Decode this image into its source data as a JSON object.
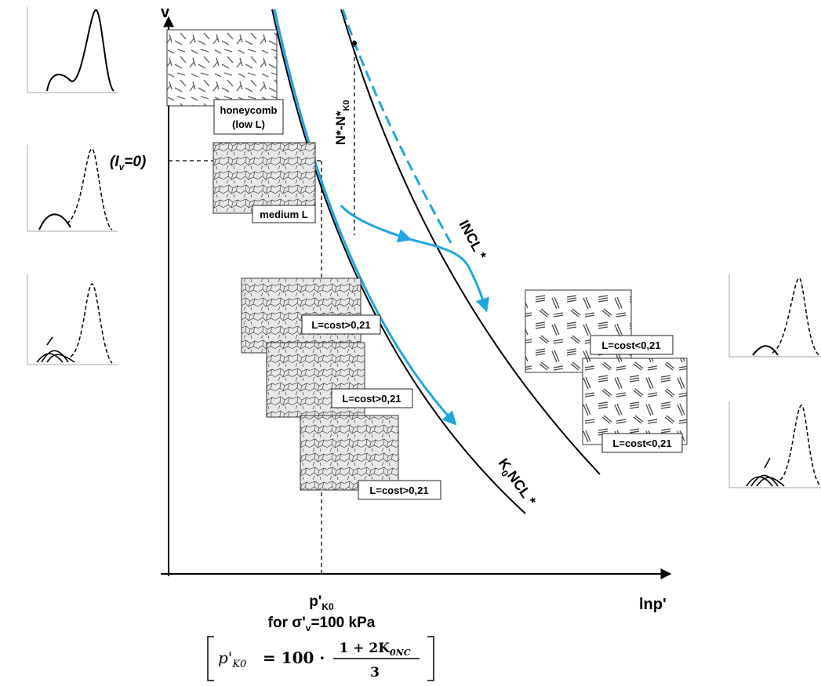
{
  "axes": {
    "y_label": "v",
    "x_label": "lnp'"
  },
  "iv_label": {
    "prefix": "(I",
    "sub": "v",
    "suffix": "=0)"
  },
  "lines": {
    "k0ncl": {
      "main": "K",
      "sub": "0",
      "rest": "NCL *"
    },
    "incl": "INCL *",
    "offset": {
      "main": "N*-N*",
      "sub": "K0"
    }
  },
  "boxes": {
    "honeycomb": [
      "honeycomb",
      "(low L)"
    ],
    "medium": "medium L",
    "dense": [
      "L=cost>0,21",
      "L=cost>0,21",
      "L=cost>0,21"
    ],
    "loose": [
      "L=cost<0,21",
      "L=cost<0,21"
    ]
  },
  "pressure": {
    "symbol": {
      "main": "p'",
      "sub": "K0"
    },
    "condition": {
      "pre": "for σ'",
      "sub": "v",
      "post": "=100 kPa"
    }
  },
  "formula": {
    "lhs_main": "p'",
    "lhs_sub": "K0",
    "eq": "= 100 ·",
    "num_main": "1 + 2K",
    "num_sub": "0NC",
    "den": "3"
  }
}
